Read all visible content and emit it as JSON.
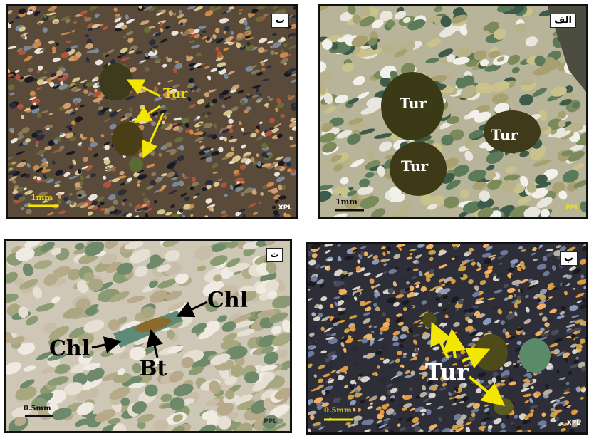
{
  "colors": {
    "arrow_yellow": "#f3e600",
    "label_yellow": "#f0d800",
    "frame": "#111111"
  },
  "panels": {
    "top_left": {
      "tag": "ب",
      "mineral_label": "Tur",
      "scale": "1mm",
      "mode": "XPL"
    },
    "top_right": {
      "tag": "الف",
      "mineral_labels": [
        "Tur",
        "Tur",
        "Tur"
      ],
      "scale": "1mm",
      "mode": "PPL"
    },
    "bottom_left": {
      "tag": "ث",
      "labels": {
        "chl_top": "Chl",
        "chl_left": "Chl",
        "bt": "Bt"
      },
      "scale": "0.5mm",
      "mode": "PPL"
    },
    "bottom_right": {
      "tag": "پ",
      "mineral_label": "Tur",
      "scale": "0.5mm",
      "mode": "XPL"
    }
  }
}
